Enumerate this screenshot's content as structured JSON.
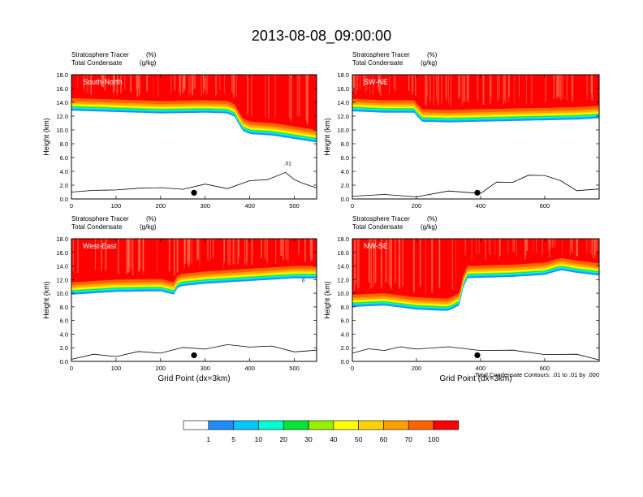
{
  "title": "2013-08-08_09:00:00",
  "panel_header": {
    "line1_label": "Stratosphere Tracer",
    "line1_unit": "(%)",
    "line2_label": "Total Condensate",
    "line2_unit": "(g/kg)"
  },
  "footnote": "Total Condensate Contours: .01 to .01 by .000",
  "colorbar": {
    "levels": [
      "1",
      "5",
      "10",
      "20",
      "30",
      "40",
      "50",
      "60",
      "70",
      "100"
    ],
    "colors": [
      "#ffffff",
      "#1e8cff",
      "#00c8ff",
      "#00ffd2",
      "#00e632",
      "#96f000",
      "#ffff00",
      "#ffd200",
      "#ffa000",
      "#ff6400",
      "#ff0000"
    ]
  },
  "chart_data": [
    {
      "type": "heatmap",
      "label": "South-North",
      "ylabel": "Height (km)",
      "xlabel": "",
      "xlim": [
        0,
        550
      ],
      "xticks": [
        0,
        100,
        200,
        300,
        400,
        500
      ],
      "ylim": [
        0,
        18
      ],
      "yticks": [
        "0.0",
        "2.0",
        "4.0",
        "6.0",
        "8.0",
        "10.0",
        "12.0",
        "14.0",
        "16.0",
        "18.0"
      ],
      "tracer_boundary_km": [
        [
          0,
          14.6
        ],
        [
          100,
          14.4
        ],
        [
          200,
          14.2
        ],
        [
          300,
          14.3
        ],
        [
          350,
          14.2
        ],
        [
          370,
          13.6
        ],
        [
          380,
          11.8
        ],
        [
          400,
          11.2
        ],
        [
          450,
          11.0
        ],
        [
          500,
          10.5
        ],
        [
          550,
          10.0
        ]
      ],
      "terrain_km": [
        [
          0,
          1.2
        ],
        [
          50,
          1.0
        ],
        [
          100,
          1.5
        ],
        [
          150,
          1.3
        ],
        [
          190,
          1.8
        ],
        [
          200,
          1.4
        ],
        [
          250,
          1.6
        ],
        [
          300,
          1.9
        ],
        [
          350,
          1.7
        ],
        [
          400,
          2.4
        ],
        [
          440,
          3.0
        ],
        [
          480,
          3.6
        ],
        [
          500,
          3.0
        ],
        [
          520,
          2.0
        ],
        [
          550,
          1.8
        ]
      ],
      "contour_label": ".01",
      "marker_x": 275
    },
    {
      "type": "heatmap",
      "label": "SW-NE",
      "ylabel": "Height (km)",
      "xlabel": "",
      "xlim": [
        0,
        770
      ],
      "xticks": [
        0,
        200,
        400,
        600
      ],
      "ylim": [
        0,
        18
      ],
      "yticks": [
        "0.0",
        "2.0",
        "4.0",
        "6.0",
        "8.0",
        "10.0",
        "12.0",
        "14.0",
        "16.0",
        "18.0"
      ],
      "tracer_boundary_km": [
        [
          0,
          14.5
        ],
        [
          100,
          14.3
        ],
        [
          200,
          14.3
        ],
        [
          210,
          13.0
        ],
        [
          300,
          12.9
        ],
        [
          400,
          13.0
        ],
        [
          500,
          13.1
        ],
        [
          600,
          13.2
        ],
        [
          700,
          13.3
        ],
        [
          770,
          13.5
        ]
      ],
      "terrain_km": [
        [
          0,
          0.6
        ],
        [
          100,
          0.4
        ],
        [
          200,
          0.5
        ],
        [
          300,
          0.9
        ],
        [
          400,
          1.0
        ],
        [
          450,
          2.2
        ],
        [
          500,
          2.6
        ],
        [
          550,
          3.2
        ],
        [
          600,
          3.6
        ],
        [
          650,
          2.4
        ],
        [
          700,
          1.4
        ],
        [
          770,
          1.2
        ]
      ],
      "contour_label": "",
      "marker_x": 390
    },
    {
      "type": "heatmap",
      "label": "West-East",
      "ylabel": "Height (km)",
      "xlabel": "Grid Point (dx=3km)",
      "xlim": [
        0,
        550
      ],
      "xticks": [
        0,
        100,
        200,
        300,
        400,
        500
      ],
      "ylim": [
        0,
        18
      ],
      "yticks": [
        "0.0",
        "2.0",
        "4.0",
        "6.0",
        "8.0",
        "10.0",
        "12.0",
        "14.0",
        "16.0",
        "18.0"
      ],
      "tracer_boundary_km": [
        [
          0,
          11.6
        ],
        [
          100,
          12.0
        ],
        [
          200,
          12.1
        ],
        [
          230,
          11.6
        ],
        [
          240,
          12.8
        ],
        [
          300,
          13.2
        ],
        [
          400,
          13.6
        ],
        [
          500,
          14.0
        ],
        [
          550,
          14.0
        ]
      ],
      "terrain_km": [
        [
          0,
          0.5
        ],
        [
          50,
          0.8
        ],
        [
          100,
          0.9
        ],
        [
          150,
          1.2
        ],
        [
          200,
          1.4
        ],
        [
          250,
          1.8
        ],
        [
          300,
          2.0
        ],
        [
          350,
          2.2
        ],
        [
          400,
          2.3
        ],
        [
          450,
          2.0
        ],
        [
          500,
          1.6
        ],
        [
          550,
          1.4
        ]
      ],
      "contour_label": "0",
      "marker_x": 275
    },
    {
      "type": "heatmap",
      "label": "NW-SE",
      "ylabel": "Height (km)",
      "xlabel": "Grid Point (dx=3km)",
      "xlim": [
        0,
        770
      ],
      "xticks": [
        0,
        200,
        400,
        600
      ],
      "ylim": [
        0,
        18
      ],
      "yticks": [
        "0.0",
        "2.0",
        "4.0",
        "6.0",
        "8.0",
        "10.0",
        "12.0",
        "14.0",
        "16.0",
        "18.0"
      ],
      "tracer_boundary_km": [
        [
          0,
          9.8
        ],
        [
          100,
          10.0
        ],
        [
          200,
          9.4
        ],
        [
          300,
          9.2
        ],
        [
          340,
          10.2
        ],
        [
          350,
          14.0
        ],
        [
          500,
          14.2
        ],
        [
          600,
          14.5
        ],
        [
          650,
          15.2
        ],
        [
          700,
          14.8
        ],
        [
          770,
          14.4
        ]
      ],
      "terrain_km": [
        [
          0,
          1.4
        ],
        [
          50,
          1.6
        ],
        [
          100,
          1.8
        ],
        [
          150,
          1.9
        ],
        [
          200,
          2.0
        ],
        [
          300,
          1.9
        ],
        [
          400,
          1.8
        ],
        [
          500,
          1.4
        ],
        [
          600,
          1.2
        ],
        [
          700,
          0.8
        ],
        [
          770,
          0.4
        ]
      ],
      "contour_label": "",
      "marker_x": 390
    }
  ]
}
